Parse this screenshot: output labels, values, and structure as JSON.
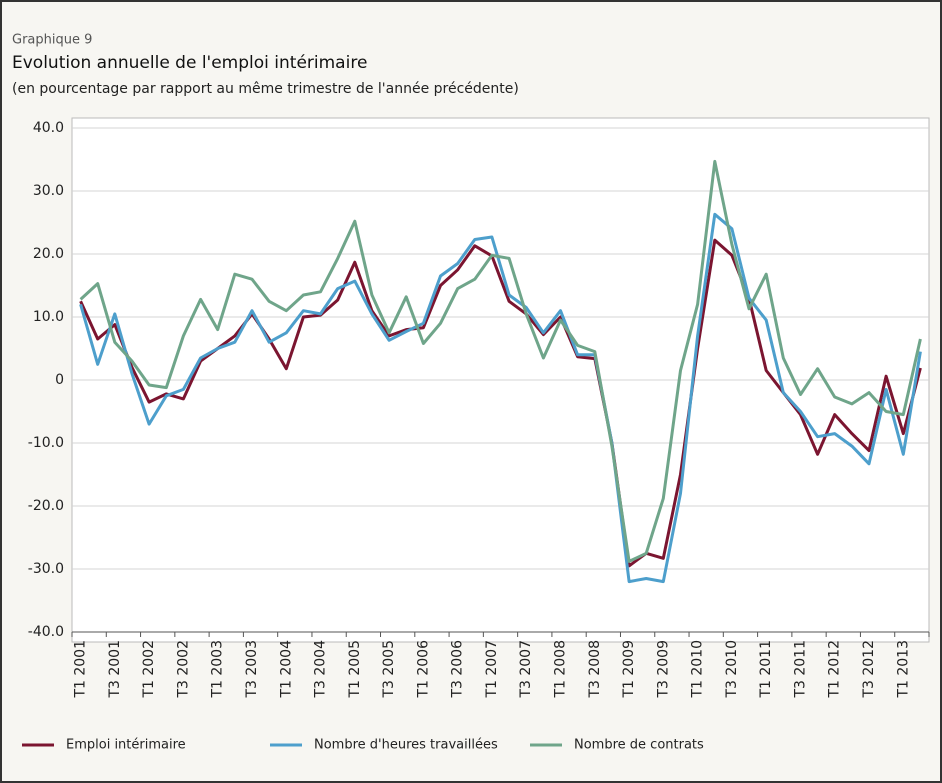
{
  "chart_data": {
    "type": "line",
    "header": "Graphique 9",
    "title": "Evolution annuelle de l'emploi intérimaire",
    "subtitle": "(en pourcentage par rapport au même trimestre de l'année précédente)",
    "categories": [
      "T1 2001",
      null,
      "T3 2001",
      null,
      "T1 2002",
      null,
      "T3 2002",
      null,
      "T1 2003",
      null,
      "T3 2003",
      null,
      "T1 2004",
      null,
      "T3 2004",
      null,
      "T1 2005",
      null,
      "T3 2005",
      null,
      "T1 2006",
      null,
      "T3 2006",
      null,
      "T1 2007",
      null,
      "T3 2007",
      null,
      "T1 2008",
      null,
      "T3 2008",
      null,
      "T1 2009",
      null,
      "T3 2009",
      null,
      "T1 2010",
      null,
      "T3 2010",
      null,
      "T1 2011",
      null,
      "T3 2011",
      null,
      "T1 2012",
      null,
      "T3 2012",
      null,
      "T1 2013",
      null
    ],
    "series": [
      {
        "name": "Emploi intérimaire",
        "color": "#7b1530",
        "values": [
          12.5,
          6.5,
          8.8,
          2,
          -3.5,
          -2.2,
          -3,
          3,
          5,
          7,
          10.5,
          6.5,
          1.8,
          10,
          10.3,
          12.7,
          18.7,
          11,
          7,
          8,
          8.3,
          15,
          17.5,
          21.3,
          19.7,
          12.5,
          10.5,
          7.2,
          10,
          3.7,
          3.4,
          -10,
          -29.5,
          -27.5,
          -28.3,
          -15,
          5,
          22.2,
          19.8,
          13,
          1.5,
          -2,
          -5.5,
          -11.8,
          -5.5,
          -8.5,
          -11.2,
          0.6,
          -8.5,
          1.9
        ]
      },
      {
        "name": "Nombre d'heures travaillées",
        "color": "#4d9fcc",
        "values": [
          12,
          2.5,
          10.5,
          1,
          -7,
          -2.5,
          -1.5,
          3.5,
          5,
          6,
          11,
          6,
          7.5,
          11,
          10.5,
          14.5,
          15.7,
          10.5,
          6.3,
          7.7,
          9,
          16.5,
          18.5,
          22.3,
          22.7,
          13.5,
          11.5,
          7.5,
          11,
          4,
          4,
          -10,
          -32,
          -31.5,
          -32,
          -18,
          7,
          26.3,
          24,
          13,
          9.5,
          -2,
          -5,
          -9,
          -8.5,
          -10.5,
          -13.3,
          -1.5,
          -11.8,
          4.5
        ]
      },
      {
        "name": "Nombre de contrats",
        "color": "#6fa58a",
        "values": [
          12.8,
          15.3,
          6,
          3,
          -0.8,
          -1.2,
          7,
          12.8,
          8,
          16.8,
          16,
          12.5,
          11,
          13.5,
          14,
          19.3,
          25.2,
          13.5,
          7.5,
          13.2,
          5.8,
          9,
          14.5,
          16,
          19.8,
          19.3,
          10.5,
          3.5,
          9.5,
          5.5,
          4.5,
          -10.5,
          -28.8,
          -27.5,
          -18.8,
          1.5,
          12,
          34.7,
          21.5,
          11.3,
          16.8,
          3.5,
          -2.3,
          1.8,
          -2.7,
          -3.8,
          -2,
          -5,
          -5.5,
          6.5
        ]
      }
    ],
    "ylim": [
      -40,
      40
    ],
    "yticks": [
      {
        "value": -40,
        "label": "-40.0"
      },
      {
        "value": -30,
        "label": "-30.0"
      },
      {
        "value": -20,
        "label": "-20.0"
      },
      {
        "value": -10,
        "label": "-10.0"
      },
      {
        "value": 0,
        "label": "0"
      },
      {
        "value": 10,
        "label": "10.0"
      },
      {
        "value": 20,
        "label": "20.0"
      },
      {
        "value": 30,
        "label": "30.0"
      },
      {
        "value": 40,
        "label": "40.0"
      }
    ],
    "grid": true
  }
}
